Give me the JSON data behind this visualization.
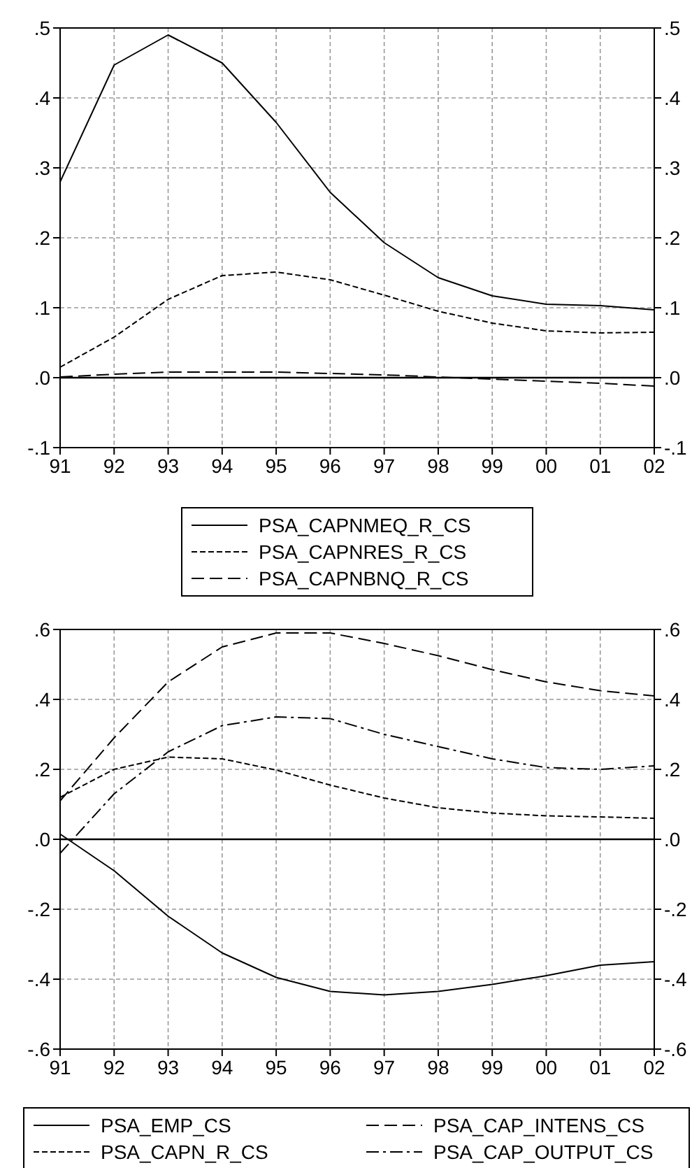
{
  "chart_data": [
    {
      "type": "line",
      "categories": [
        "91",
        "92",
        "93",
        "94",
        "95",
        "96",
        "97",
        "98",
        "99",
        "00",
        "01",
        "02"
      ],
      "ylim": [
        -0.1,
        0.5
      ],
      "yticks": [
        {
          "value": -0.1,
          "label": "-.1"
        },
        {
          "value": 0,
          "label": ".0"
        },
        {
          "value": 0.1,
          "label": ".1"
        },
        {
          "value": 0.2,
          "label": ".2"
        },
        {
          "value": 0.3,
          "label": ".3"
        },
        {
          "value": 0.4,
          "label": ".4"
        },
        {
          "value": 0.5,
          "label": ".5"
        }
      ],
      "y2lim": [
        -0.1,
        0.5
      ],
      "y2ticks": [
        {
          "value": -0.1,
          "label": "-.1"
        },
        {
          "value": 0,
          "label": ".0"
        },
        {
          "value": 0.1,
          "label": ".1"
        },
        {
          "value": 0.2,
          "label": ".2"
        },
        {
          "value": 0.3,
          "label": ".3"
        },
        {
          "value": 0.4,
          "label": ".4"
        },
        {
          "value": 0.5,
          "label": ".5"
        }
      ],
      "grid": true,
      "legend": "bottom",
      "ref_lines": [
        {
          "axis": "y",
          "value": 0
        }
      ],
      "series": [
        {
          "name": "PSA_CAPNMEQ_R_CS",
          "color": "#000000",
          "line_style": "solid",
          "values": [
            0.28,
            0.447,
            0.49,
            0.45,
            0.365,
            0.265,
            0.193,
            0.143,
            0.117,
            0.105,
            0.103,
            0.097
          ]
        },
        {
          "name": "PSA_CAPNRES_R_CS",
          "color": "#000000",
          "line_style": "dashed",
          "values": [
            0.015,
            0.058,
            0.112,
            0.146,
            0.151,
            0.14,
            0.118,
            0.095,
            0.078,
            0.067,
            0.064,
            0.065
          ]
        },
        {
          "name": "PSA_CAPNBNQ_R_CS",
          "color": "#000000",
          "line_style": "longdash",
          "values": [
            0.001,
            0.005,
            0.008,
            0.008,
            0.008,
            0.006,
            0.004,
            0.001,
            -0.002,
            -0.005,
            -0.008,
            -0.012
          ]
        }
      ]
    },
    {
      "type": "line",
      "categories": [
        "91",
        "92",
        "93",
        "94",
        "95",
        "96",
        "97",
        "98",
        "99",
        "00",
        "01",
        "02"
      ],
      "ylim": [
        -0.6,
        0.6
      ],
      "yticks": [
        {
          "value": -0.6,
          "label": "-.6"
        },
        {
          "value": -0.4,
          "label": "-.4"
        },
        {
          "value": -0.2,
          "label": "-.2"
        },
        {
          "value": 0,
          "label": ".0"
        },
        {
          "value": 0.2,
          "label": ".2"
        },
        {
          "value": 0.4,
          "label": ".4"
        },
        {
          "value": 0.6,
          "label": ".6"
        }
      ],
      "y2lim": [
        -0.6,
        0.6
      ],
      "y2ticks": [
        {
          "value": -0.6,
          "label": "-.6"
        },
        {
          "value": -0.4,
          "label": "-.4"
        },
        {
          "value": -0.2,
          "label": "-.2"
        },
        {
          "value": 0,
          "label": ".0"
        },
        {
          "value": 0.2,
          "label": ".2"
        },
        {
          "value": 0.4,
          "label": ".4"
        },
        {
          "value": 0.6,
          "label": ".6"
        }
      ],
      "grid": true,
      "legend": "bottom",
      "ref_lines": [
        {
          "axis": "y",
          "value": 0
        }
      ],
      "series": [
        {
          "name": "PSA_EMP_CS",
          "color": "#000000",
          "line_style": "solid",
          "values": [
            0.015,
            -0.09,
            -0.22,
            -0.325,
            -0.395,
            -0.435,
            -0.445,
            -0.435,
            -0.415,
            -0.39,
            -0.36,
            -0.35
          ]
        },
        {
          "name": "PSA_CAPN_R_CS",
          "color": "#000000",
          "line_style": "dashed",
          "values": [
            0.12,
            0.2,
            0.235,
            0.23,
            0.198,
            0.155,
            0.118,
            0.09,
            0.075,
            0.067,
            0.064,
            0.06
          ]
        },
        {
          "name": "PSA_CAP_INTENS_CS",
          "color": "#000000",
          "line_style": "longdash",
          "values": [
            0.11,
            0.29,
            0.45,
            0.55,
            0.59,
            0.59,
            0.56,
            0.525,
            0.485,
            0.45,
            0.425,
            0.41
          ]
        },
        {
          "name": "PSA_CAP_OUTPUT_CS",
          "color": "#000000",
          "line_style": "dashdot",
          "values": [
            -0.04,
            0.13,
            0.25,
            0.325,
            0.35,
            0.345,
            0.3,
            0.265,
            0.23,
            0.205,
            0.2,
            0.21
          ]
        }
      ]
    }
  ]
}
